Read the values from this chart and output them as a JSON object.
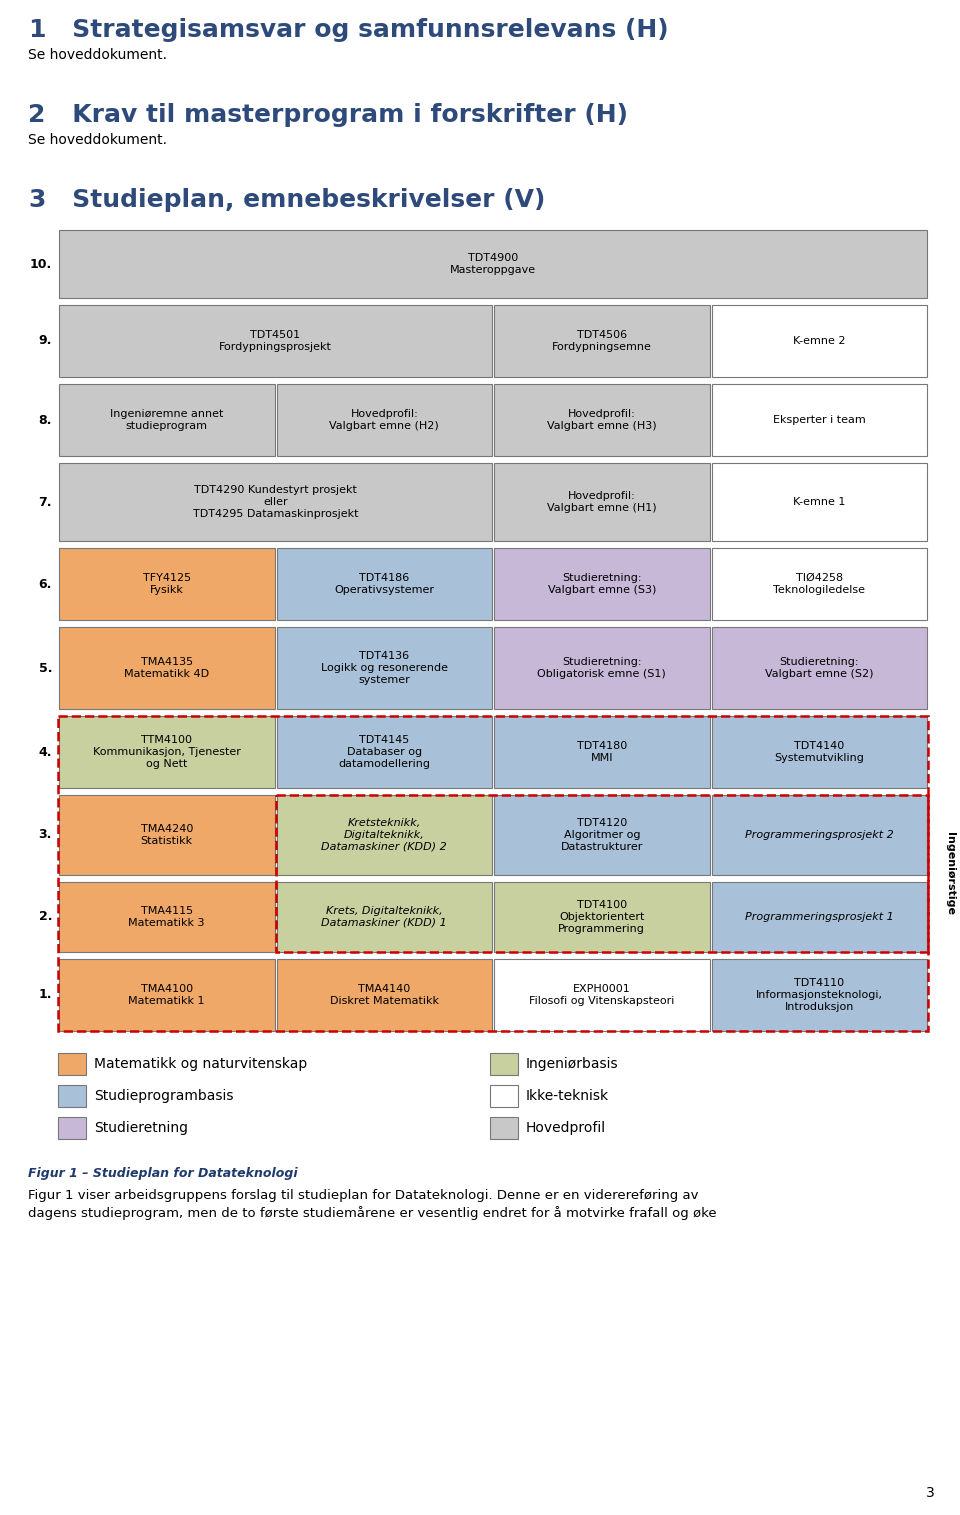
{
  "title1_num": "1",
  "title1_text": "   Strategisamsvar og samfunnsrelevans (H)",
  "sub1": "Se hoveddokument.",
  "title2_num": "2",
  "title2_text": "   Krav til masterprogram i forskrifter (H)",
  "sub2": "Se hoveddokument.",
  "title3_num": "3",
  "title3_text": "   Studieplan, emnebeskrivelser (V)",
  "heading_color": "#2E4A7A",
  "fig_caption": "Figur 1 – Studieplan for Datateknologi",
  "fig_caption_color": "#1F3A6E",
  "footer_text": "Figur 1 viser arbeidsgruppens forslag til studieplan for Datateknologi. Denne er en viderereføring av\ndagens studieprogram, men de to første studiemårene er vesentlig endret for å motvirke frafall og øke",
  "page_num": "3",
  "rows": [
    {
      "label": "10.",
      "cells": [
        {
          "text": "TDT4900\nMasteroppgave",
          "color": "#C8C8C8",
          "colspan": 4
        }
      ]
    },
    {
      "label": "9.",
      "cells": [
        {
          "text": "TDT4501\nFordypningsprosjekt",
          "color": "#C8C8C8",
          "colspan": 2
        },
        {
          "text": "TDT4506\nFordypningsemne",
          "color": "#C8C8C8",
          "colspan": 1
        },
        {
          "text": "K-emne 2",
          "color": "#FFFFFF",
          "colspan": 1
        }
      ]
    },
    {
      "label": "8.",
      "cells": [
        {
          "text": "Ingeniøremne annet\nstudieprogram",
          "color": "#C8C8C8",
          "colspan": 1
        },
        {
          "text": "Hovedprofil:\nValgbart emne (H2)",
          "color": "#C8C8C8",
          "colspan": 1
        },
        {
          "text": "Hovedprofil:\nValgbart emne (H3)",
          "color": "#C8C8C8",
          "colspan": 1
        },
        {
          "text": "Eksperter i team",
          "color": "#FFFFFF",
          "colspan": 1
        }
      ]
    },
    {
      "label": "7.",
      "cells": [
        {
          "text": "TDT4290 Kundestyrt prosjekt\neller\nTDT4295 Datamaskinprosjekt",
          "color": "#C8C8C8",
          "colspan": 2
        },
        {
          "text": "Hovedprofil:\nValgbart emne (H1)",
          "color": "#C8C8C8",
          "colspan": 1
        },
        {
          "text": "K-emne 1",
          "color": "#FFFFFF",
          "colspan": 1
        }
      ]
    },
    {
      "label": "6.",
      "cells": [
        {
          "text": "TFY4125\nFysikk",
          "color": "#F0A868",
          "colspan": 1
        },
        {
          "text": "TDT4186\nOperativsystemer",
          "color": "#A8C0D8",
          "colspan": 1
        },
        {
          "text": "Studieretning:\nValgbart emne (S3)",
          "color": "#C8B8D8",
          "colspan": 1
        },
        {
          "text": "TIØ4258\nTeknologiledelse",
          "color": "#FFFFFF",
          "colspan": 1
        }
      ]
    },
    {
      "label": "5.",
      "cells": [
        {
          "text": "TMA4135\nMatematikk 4D",
          "color": "#F0A868",
          "colspan": 1
        },
        {
          "text": "TDT4136\nLogikk og resonerende\nsystemer",
          "color": "#A8C0D8",
          "colspan": 1
        },
        {
          "text": "Studieretning:\nObligatorisk emne (S1)",
          "color": "#C8B8D8",
          "colspan": 1
        },
        {
          "text": "Studieretning:\nValgbart emne (S2)",
          "color": "#C8B8D8",
          "colspan": 1
        }
      ]
    },
    {
      "label": "4.",
      "cells": [
        {
          "text": "TTM4100\nKommunikasjon, Tjenester\nog Nett",
          "color": "#C8D0A0",
          "colspan": 1
        },
        {
          "text": "TDT4145\nDatabaser og\ndatamodellering",
          "color": "#A8C0D8",
          "colspan": 1
        },
        {
          "text": "TDT4180\nMMI",
          "color": "#A8C0D8",
          "colspan": 1
        },
        {
          "text": "TDT4140\nSystemutvikling",
          "color": "#A8C0D8",
          "colspan": 1
        }
      ]
    },
    {
      "label": "3.",
      "cells": [
        {
          "text": "TMA4240\nStatistikk",
          "color": "#F0A868",
          "colspan": 1
        },
        {
          "text": "Kretsteknikk,\nDigitalteknikk,\nDatamaskiner (KDD) 2",
          "color": "#C8D0A0",
          "colspan": 1,
          "italic": true
        },
        {
          "text": "TDT4120\nAlgoritmer og\nDatastrukturer",
          "color": "#A8C0D8",
          "colspan": 1
        },
        {
          "text": "Programmeringsprosjekt 2",
          "color": "#A8C0D8",
          "colspan": 1,
          "italic": true
        }
      ]
    },
    {
      "label": "2.",
      "cells": [
        {
          "text": "TMA4115\nMatematikk 3",
          "color": "#F0A868",
          "colspan": 1
        },
        {
          "text": "Krets, Digitalteknikk,\nDatamaskiner (KDD) 1",
          "color": "#C8D0A0",
          "colspan": 1,
          "italic": true
        },
        {
          "text": "TDT4100\nObjektorientert\nProgrammering",
          "color": "#C8D0A0",
          "colspan": 1
        },
        {
          "text": "Programmeringsprosjekt 1",
          "color": "#A8C0D8",
          "colspan": 1,
          "italic": true
        }
      ]
    },
    {
      "label": "1.",
      "cells": [
        {
          "text": "TMA4100\nMatematikk 1",
          "color": "#F0A868",
          "colspan": 1
        },
        {
          "text": "TMA4140\nDiskret Matematikk",
          "color": "#F0A868",
          "colspan": 1
        },
        {
          "text": "EXPH0001\nFilosofi og Vitenskapsteori",
          "color": "#FFFFFF",
          "colspan": 1
        },
        {
          "text": "TDT4110\nInformasjonsteknologi,\nIntroduksjon",
          "color": "#A8C0D8",
          "colspan": 1
        }
      ]
    }
  ],
  "legend": [
    {
      "color": "#F0A868",
      "label": "Matematikk og naturvitenskap"
    },
    {
      "color": "#A8C0D8",
      "label": "Studieprogrambasis"
    },
    {
      "color": "#C8B8D8",
      "label": "Studieretning"
    },
    {
      "color": "#C8D0A0",
      "label": "Ingeniørbasis"
    },
    {
      "color": "#FFFFFF",
      "label": "Ikke-teknisk"
    },
    {
      "color": "#C8C8C8",
      "label": "Hovedprofil"
    }
  ]
}
